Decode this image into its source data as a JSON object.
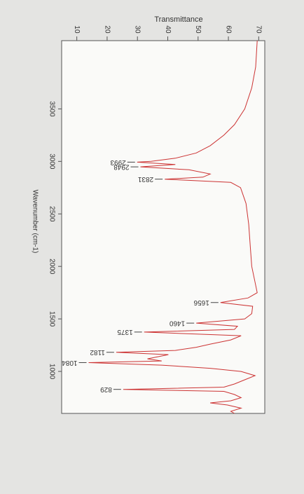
{
  "chart_data": {
    "type": "line",
    "rotated": true,
    "y_label": "Transmittance",
    "x_label": "Wavenumber (cm-1)",
    "xlim": [
      4150,
      600
    ],
    "ylim": [
      5,
      72
    ],
    "xticks": [
      3500,
      3000,
      2500,
      2000,
      1500,
      1000
    ],
    "yticks": [
      70,
      60,
      50,
      40,
      30,
      20,
      10
    ],
    "grid": false,
    "x": [
      4150,
      3900,
      3700,
      3500,
      3350,
      3250,
      3150,
      3080,
      3030,
      3000,
      2993,
      2970,
      2948,
      2920,
      2880,
      2850,
      2831,
      2800,
      2750,
      2600,
      2400,
      2200,
      2000,
      1850,
      1750,
      1700,
      1656,
      1620,
      1550,
      1500,
      1460,
      1430,
      1400,
      1375,
      1340,
      1300,
      1260,
      1230,
      1200,
      1182,
      1160,
      1120,
      1100,
      1084,
      1060,
      1030,
      1000,
      960,
      920,
      880,
      850,
      829,
      810,
      780,
      750,
      720,
      700,
      680,
      650,
      620,
      600
    ],
    "series": [
      {
        "color": "#cc3333",
        "values": [
          69.5,
          69,
          67.7,
          65.4,
          62,
          58.5,
          54,
          49.4,
          42.5,
          34.5,
          29.9,
          42.5,
          31,
          47,
          54,
          51.6,
          39,
          60.8,
          64,
          65.8,
          66.7,
          67.2,
          67.7,
          68.8,
          69.5,
          66.5,
          57.4,
          68,
          67.7,
          65.4,
          49.4,
          63,
          62,
          32.2,
          64.2,
          60.8,
          54,
          49.4,
          42.5,
          23,
          40.2,
          33.3,
          38,
          13.9,
          38,
          54,
          64.2,
          68.8,
          65.4,
          62,
          58.5,
          25.3,
          58.5,
          62,
          64.2,
          60.8,
          54,
          59.7,
          64.2,
          60.8,
          62
        ]
      }
    ],
    "annotations": [
      {
        "x": 2993,
        "y": 29.9
      },
      {
        "x": 2948,
        "y": 31
      },
      {
        "x": 2831,
        "y": 39
      },
      {
        "x": 1656,
        "y": 57.4
      },
      {
        "x": 1460,
        "y": 49.4
      },
      {
        "x": 1375,
        "y": 32.2
      },
      {
        "x": 1182,
        "y": 23
      },
      {
        "x": 1084,
        "y": 13.9
      },
      {
        "x": 829,
        "y": 25.3
      }
    ]
  }
}
